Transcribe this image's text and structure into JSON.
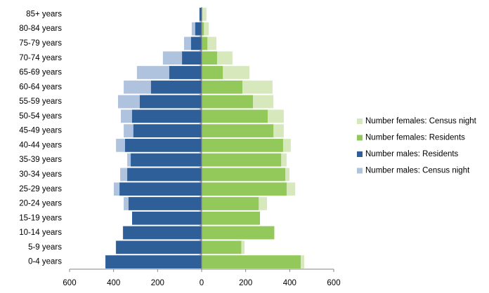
{
  "chart_data": {
    "type": "pyramid",
    "categories": [
      "0-4 years",
      "5-9 years",
      "10-14 years",
      "15-19 years",
      "20-24 years",
      "25-29 years",
      "30-34 years",
      "35-39 years",
      "40-44 years",
      "45-49 years",
      "50-54 years",
      "55-59 years",
      "60-64 years",
      "65-69 years",
      "70-74 years",
      "75-79 years",
      "80-84 years",
      "85+ years"
    ],
    "series": [
      {
        "name": "Number females: Census night",
        "color": "#d7e8bd",
        "values": [
          466,
          195,
          332,
          265,
          297,
          425,
          399,
          386,
          405,
          373,
          373,
          326,
          322,
          217,
          140,
          67,
          32,
          22
        ]
      },
      {
        "name": "Number females: Residents",
        "color": "#92c95a",
        "values": [
          450,
          180,
          329,
          265,
          259,
          386,
          380,
          361,
          370,
          326,
          300,
          233,
          185,
          96,
          70,
          26,
          10,
          3
        ]
      },
      {
        "name": "Number males: Residents",
        "color": "#2f5f98",
        "values": [
          -437,
          -389,
          -357,
          -316,
          -332,
          -373,
          -338,
          -322,
          -348,
          -310,
          -316,
          -281,
          -230,
          -147,
          -89,
          -48,
          -29,
          -10
        ]
      },
      {
        "name": "Number males: Census night",
        "color": "#b0c3de",
        "values": [
          -437,
          -390,
          -358,
          -316,
          -354,
          -399,
          -370,
          -338,
          -389,
          -354,
          -367,
          -380,
          -354,
          -294,
          -176,
          -80,
          -45,
          -8
        ]
      }
    ],
    "xlim": [
      -600,
      600
    ],
    "xticks": [
      {
        "value": -600,
        "label": "600"
      },
      {
        "value": -400,
        "label": "400"
      },
      {
        "value": -200,
        "label": "200"
      },
      0,
      200,
      400,
      600
    ]
  }
}
